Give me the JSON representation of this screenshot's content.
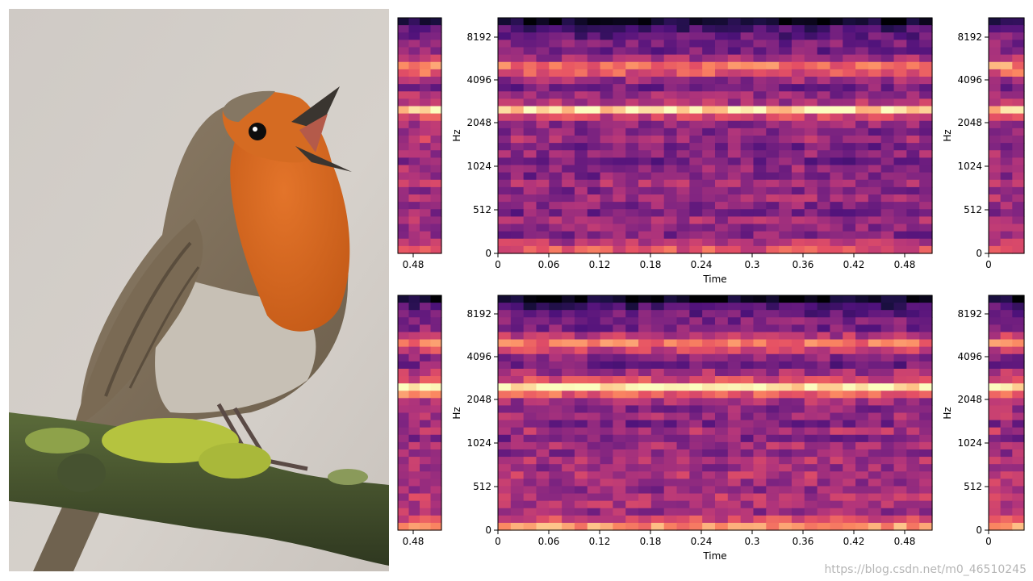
{
  "watermark": "https://blog.csdn.net/m0_46510245",
  "chart_data": [
    {
      "type": "heatmap",
      "name_hint": "left strip top",
      "x_ticks": [
        "0.48"
      ],
      "y_ticks": [],
      "xlabel": "",
      "ylabel": "",
      "band_profile": [
        0.08,
        0.28,
        0.36,
        0.42,
        0.38,
        0.5,
        0.78,
        0.66,
        0.48,
        0.38,
        0.52,
        0.58,
        0.92,
        0.62,
        0.5,
        0.46,
        0.52,
        0.4,
        0.48,
        0.38,
        0.46,
        0.42,
        0.5,
        0.44,
        0.5,
        0.46,
        0.42,
        0.5,
        0.46,
        0.44,
        0.56,
        0.66
      ]
    },
    {
      "type": "heatmap",
      "name_hint": "main top",
      "x_ticks": [
        "0",
        "0.06",
        "0.12",
        "0.18",
        "0.24",
        "0.3",
        "0.36",
        "0.42",
        "0.48"
      ],
      "y_ticks": [
        "0",
        "512",
        "1024",
        "2048",
        "4096",
        "8192"
      ],
      "xlabel": "Time",
      "ylabel": "Hz",
      "band_profile": [
        0.06,
        0.24,
        0.3,
        0.36,
        0.34,
        0.46,
        0.7,
        0.62,
        0.44,
        0.36,
        0.42,
        0.48,
        0.94,
        0.56,
        0.42,
        0.38,
        0.46,
        0.36,
        0.42,
        0.34,
        0.42,
        0.38,
        0.46,
        0.4,
        0.46,
        0.4,
        0.36,
        0.46,
        0.42,
        0.38,
        0.5,
        0.62
      ]
    },
    {
      "type": "heatmap",
      "name_hint": "right strip top",
      "x_ticks": [
        "0"
      ],
      "y_ticks": [
        "0",
        "512",
        "1024",
        "2048",
        "4096",
        "8192"
      ],
      "xlabel": "",
      "ylabel": "Hz",
      "band_profile": [
        0.08,
        0.28,
        0.36,
        0.4,
        0.38,
        0.5,
        0.76,
        0.64,
        0.46,
        0.38,
        0.52,
        0.56,
        0.9,
        0.6,
        0.48,
        0.44,
        0.5,
        0.4,
        0.46,
        0.38,
        0.44,
        0.42,
        0.48,
        0.44,
        0.48,
        0.44,
        0.42,
        0.48,
        0.46,
        0.44,
        0.54,
        0.64
      ]
    },
    {
      "type": "heatmap",
      "name_hint": "left strip bottom",
      "x_ticks": [
        "0.48"
      ],
      "y_ticks": [],
      "xlabel": "",
      "ylabel": "",
      "band_profile": [
        0.06,
        0.26,
        0.34,
        0.4,
        0.4,
        0.56,
        0.72,
        0.56,
        0.4,
        0.38,
        0.5,
        0.6,
        0.96,
        0.7,
        0.5,
        0.46,
        0.48,
        0.4,
        0.5,
        0.4,
        0.5,
        0.44,
        0.52,
        0.48,
        0.52,
        0.5,
        0.46,
        0.52,
        0.5,
        0.48,
        0.6,
        0.8
      ]
    },
    {
      "type": "heatmap",
      "name_hint": "main bottom",
      "x_ticks": [
        "0",
        "0.06",
        "0.12",
        "0.18",
        "0.24",
        "0.3",
        "0.36",
        "0.42",
        "0.48"
      ],
      "y_ticks": [
        "0",
        "512",
        "1024",
        "2048",
        "4096",
        "8192"
      ],
      "xlabel": "Time",
      "ylabel": "Hz",
      "band_profile": [
        0.04,
        0.22,
        0.32,
        0.38,
        0.36,
        0.5,
        0.72,
        0.56,
        0.38,
        0.34,
        0.46,
        0.58,
        0.98,
        0.66,
        0.46,
        0.4,
        0.44,
        0.36,
        0.48,
        0.38,
        0.46,
        0.4,
        0.48,
        0.44,
        0.5,
        0.46,
        0.42,
        0.5,
        0.48,
        0.44,
        0.58,
        0.78
      ]
    },
    {
      "type": "heatmap",
      "name_hint": "right strip bottom",
      "x_ticks": [
        "0"
      ],
      "y_ticks": [
        "0",
        "512",
        "1024",
        "2048",
        "4096",
        "8192"
      ],
      "xlabel": "",
      "ylabel": "Hz",
      "band_profile": [
        0.06,
        0.26,
        0.34,
        0.4,
        0.4,
        0.56,
        0.72,
        0.56,
        0.4,
        0.38,
        0.5,
        0.6,
        0.94,
        0.68,
        0.5,
        0.46,
        0.48,
        0.4,
        0.5,
        0.4,
        0.5,
        0.44,
        0.52,
        0.48,
        0.52,
        0.5,
        0.46,
        0.52,
        0.5,
        0.48,
        0.6,
        0.78
      ]
    }
  ]
}
